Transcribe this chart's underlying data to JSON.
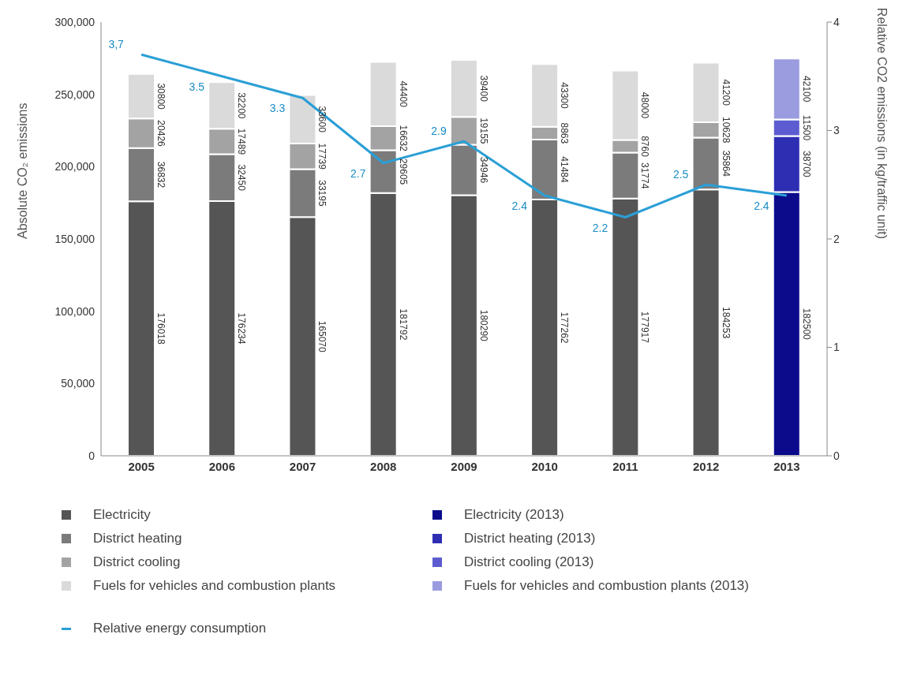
{
  "chart_data": {
    "type": "bar",
    "stacked": true,
    "ylabel": "Absolute CO₂ emissions",
    "y2label": "Relative CO2 emissions (in kg/traffic unit)",
    "categories": [
      "2005",
      "2006",
      "2007",
      "2008",
      "2009",
      "2010",
      "2011",
      "2012",
      "2013"
    ],
    "ylim": [
      0,
      300000
    ],
    "yticks": [
      0,
      {
        "value": 50000,
        "label": "50,000"
      },
      {
        "value": 100000,
        "label": "100,000"
      },
      {
        "value": 150000,
        "label": "150,000"
      },
      {
        "value": 200000,
        "label": "200,000"
      },
      {
        "value": 250000,
        "label": "250,000"
      },
      {
        "value": 300000,
        "label": "300,000"
      }
    ],
    "y2lim": [
      0,
      4
    ],
    "y2ticks": [
      0,
      1,
      2,
      3,
      4
    ],
    "grid": false,
    "legend": "bottom",
    "data_labels": true,
    "marker": "none",
    "line_style": "solid",
    "series": [
      {
        "name": "Electricity",
        "color": "#555555",
        "values": [
          176018,
          176234,
          165070,
          181792,
          180290,
          177262,
          177917,
          184253,
          null
        ]
      },
      {
        "name": "District heating",
        "color": "#7b7b7b",
        "values": [
          36832,
          32450,
          33195,
          29605,
          34946,
          41484,
          31774,
          35864,
          null
        ]
      },
      {
        "name": "District cooling",
        "color": "#a3a3a3",
        "values": [
          20426,
          17489,
          17739,
          16632,
          19155,
          8863,
          8760,
          10628,
          null
        ]
      },
      {
        "name": "Fuels for vehicles and combustion plants",
        "color": "#dadada",
        "values": [
          30800,
          32200,
          33600,
          44400,
          39400,
          43300,
          48000,
          41200,
          null
        ]
      },
      {
        "name": "Electricity (2013)",
        "color": "#0b0b8c",
        "values": [
          null,
          null,
          null,
          null,
          null,
          null,
          null,
          null,
          182500
        ]
      },
      {
        "name": "District heating (2013)",
        "color": "#2e2eb3",
        "values": [
          null,
          null,
          null,
          null,
          null,
          null,
          null,
          null,
          38700
        ]
      },
      {
        "name": "District cooling (2013)",
        "color": "#5c5cd0",
        "values": [
          null,
          null,
          null,
          null,
          null,
          null,
          null,
          null,
          11500
        ]
      },
      {
        "name": "Fuels for vehicles and combustion plants (2013)",
        "color": "#9b9be0",
        "values": [
          null,
          null,
          null,
          null,
          null,
          null,
          null,
          null,
          42100
        ]
      },
      {
        "name": "Relative energy consumption",
        "type": "line",
        "axis": "y2",
        "color": "#2a9fd6",
        "values": [
          3.7,
          3.5,
          3.3,
          2.7,
          2.9,
          2.4,
          2.2,
          2.5,
          2.4
        ],
        "value_labels": [
          "3,7",
          "3.5",
          "3.3",
          "2.7",
          "2.9",
          "2.4",
          "2.2",
          "2.5",
          "2.4"
        ]
      }
    ]
  }
}
